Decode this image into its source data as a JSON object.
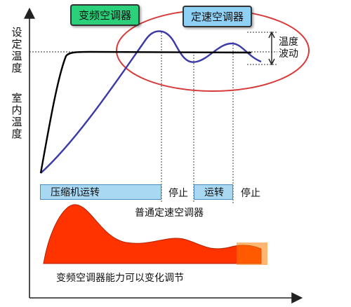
{
  "axis": {
    "y_label_setpoint": "设定温度",
    "y_label_room": "室内温度"
  },
  "bubbles": {
    "inverter": "变频空调器",
    "fixed_speed": "定速空调器"
  },
  "fluctuation_label": "温度波动",
  "timeline": {
    "compressor_running": "压缩机运转",
    "stop_1": "停止",
    "running": "运转",
    "stop_2": "停止",
    "caption": "普通定速空调器"
  },
  "capacity_caption": "变频空调器能力可以变化调节",
  "colors": {
    "inverter_curve": "#000000",
    "fixed_speed_curve": "#3a3aa8",
    "ellipse": "#d83a3a",
    "capacity_fill": "#ff3300",
    "bar_fill": "#a9d8f3",
    "bubble_green": "#2bd07a",
    "bubble_blue": "#8fd0f5"
  }
}
